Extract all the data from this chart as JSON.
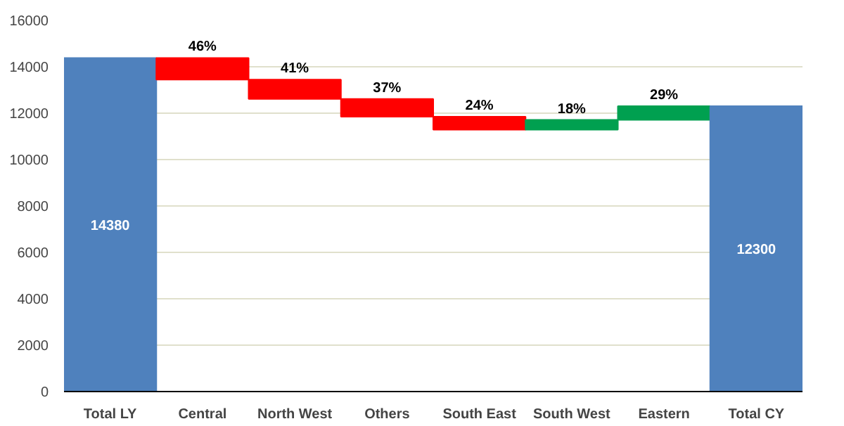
{
  "chart_data": {
    "type": "bar",
    "categories": [
      "Total LY",
      "Central",
      "North West",
      "Others",
      "South East",
      "South West",
      "Eastern",
      "Total CY"
    ],
    "values": [
      14380,
      -930,
      -840,
      -760,
      -560,
      420,
      590,
      12300
    ],
    "base": [
      0,
      14380,
      13450,
      12610,
      11850,
      11290,
      11710,
      0
    ],
    "colors": [
      "#4f81bd",
      "#ff0000",
      "#ff0000",
      "#ff0000",
      "#ff0000",
      "#00a050",
      "#00a050",
      "#4f81bd"
    ],
    "value_labels": [
      "14380",
      null,
      null,
      null,
      null,
      null,
      null,
      "12300"
    ],
    "annotations": [
      {
        "text": "46%",
        "x": "Central",
        "y": 14380
      },
      {
        "text": "41%",
        "x": "North West",
        "y": 13450
      },
      {
        "text": "37%",
        "x": "Others",
        "y": 12610
      },
      {
        "text": "24%",
        "x": "South East",
        "y": 11850
      },
      {
        "text": "18%",
        "x": "South West",
        "y": 11710
      },
      {
        "text": "29%",
        "x": "Eastern",
        "y": 12300
      }
    ],
    "ylim": [
      0,
      16000
    ],
    "yticks": [
      0,
      2000,
      4000,
      6000,
      8000,
      10000,
      12000,
      14000,
      16000
    ],
    "grid": "y"
  }
}
